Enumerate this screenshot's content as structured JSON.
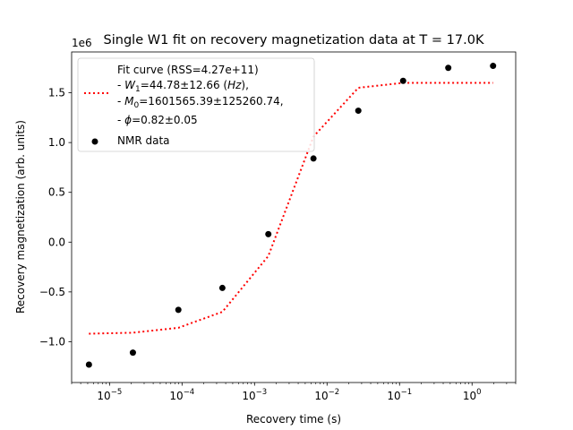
{
  "chart_data": {
    "type": "scatter",
    "title": "Single W1 fit on recovery magnetization data at T = 17.0K",
    "xlabel": "Recovery time (s)",
    "ylabel": "Recovery magnetization (arb. units)",
    "y_offset_label": "1e6",
    "x_scale": "log",
    "xlim": [
      3e-06,
      4.0
    ],
    "ylim": [
      -1410000.0,
      1910000.0
    ],
    "x_ticks": [
      {
        "value": 1e-05,
        "base": "10",
        "exp": "−5"
      },
      {
        "value": 0.0001,
        "base": "10",
        "exp": "−4"
      },
      {
        "value": 0.001,
        "base": "10",
        "exp": "−3"
      },
      {
        "value": 0.01,
        "base": "10",
        "exp": "−2"
      },
      {
        "value": 0.1,
        "base": "10",
        "exp": "−1"
      },
      {
        "value": 1,
        "base": "10",
        "exp": "0"
      }
    ],
    "y_ticks": [
      {
        "value": -1000000.0,
        "label": "−1.0"
      },
      {
        "value": -500000.0,
        "label": "−0.5"
      },
      {
        "value": 0.0,
        "label": "0.0"
      },
      {
        "value": 500000.0,
        "label": "0.5"
      },
      {
        "value": 1000000.0,
        "label": "1.0"
      },
      {
        "value": 1500000.0,
        "label": "1.5"
      }
    ],
    "series": [
      {
        "name": "NMR data",
        "kind": "scatter",
        "color": "#000000",
        "x": [
          5.2e-06,
          2.1e-05,
          8.9e-05,
          0.00036,
          0.00155,
          0.0065,
          0.027,
          0.112,
          0.47,
          1.95
        ],
        "y": [
          -1230000.0,
          -1110000.0,
          -680000.0,
          -460000.0,
          80000.0,
          840000.0,
          1320000.0,
          1620000.0,
          1750000.0,
          1770000.0
        ]
      },
      {
        "name": "Fit curve",
        "kind": "line",
        "style": "dotted",
        "color": "#ff0000",
        "x": [
          5.2e-06,
          2.1e-05,
          8.9e-05,
          0.00036,
          0.00155,
          0.0065,
          0.027,
          0.112,
          0.47,
          1.95
        ],
        "y": [
          -920000.0,
          -910000.0,
          -860000.0,
          -700000.0,
          -140000.0,
          1060000.0,
          1550000.0,
          1600000.0,
          1600000.0,
          1600000.0
        ]
      }
    ],
    "legend": {
      "placement": "upper-left",
      "fit_entry": {
        "line1": "Fit curve (RSS=4.27e+11)",
        "line2": {
          "prefix": "- ",
          "sym": "W",
          "sub": "1",
          "text": "=44.78±12.66 (",
          "unit": "Hz",
          "suffix": "),"
        },
        "line3": {
          "prefix": "- ",
          "sym": "M",
          "sub": "0",
          "text": "=1601565.39±125260.74,"
        },
        "line4": {
          "prefix": "- ",
          "sym": "ϕ",
          "text": "=0.82±0.05"
        }
      },
      "data_entry": "NMR data"
    }
  }
}
